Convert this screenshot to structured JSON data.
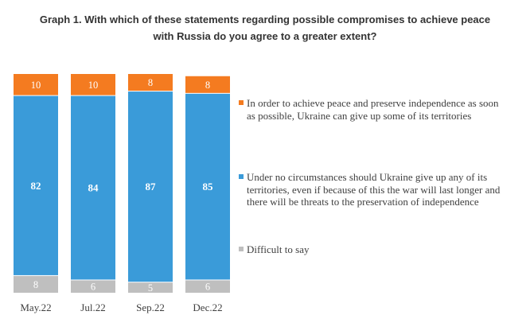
{
  "chart_data": {
    "type": "bar",
    "stacked": true,
    "title_lines": [
      "Graph 1. With which of these statements regarding possible compromises to achieve peace",
      "with Russia do you agree to a greater extent?"
    ],
    "categories": [
      "May.22",
      "Jul.22",
      "Sep.22",
      "Dec.22"
    ],
    "series": [
      {
        "name": "In order to achieve peace and preserve independence as soon as possible, Ukraine can give up some of its territories",
        "color": "#f47b20",
        "values": [
          10,
          10,
          8,
          8
        ]
      },
      {
        "name": "Under no circumstances should Ukraine give up any of its territories, even if because of this the war will last longer and there will be threats to the preservation of independence",
        "color": "#3a9bd9",
        "values": [
          82,
          84,
          87,
          85
        ]
      },
      {
        "name": "Difficult to say",
        "color": "#bfbfbf",
        "values": [
          8,
          6,
          5,
          6
        ]
      }
    ],
    "ylim": [
      0,
      100
    ],
    "grid": false,
    "legend_position": "right"
  }
}
